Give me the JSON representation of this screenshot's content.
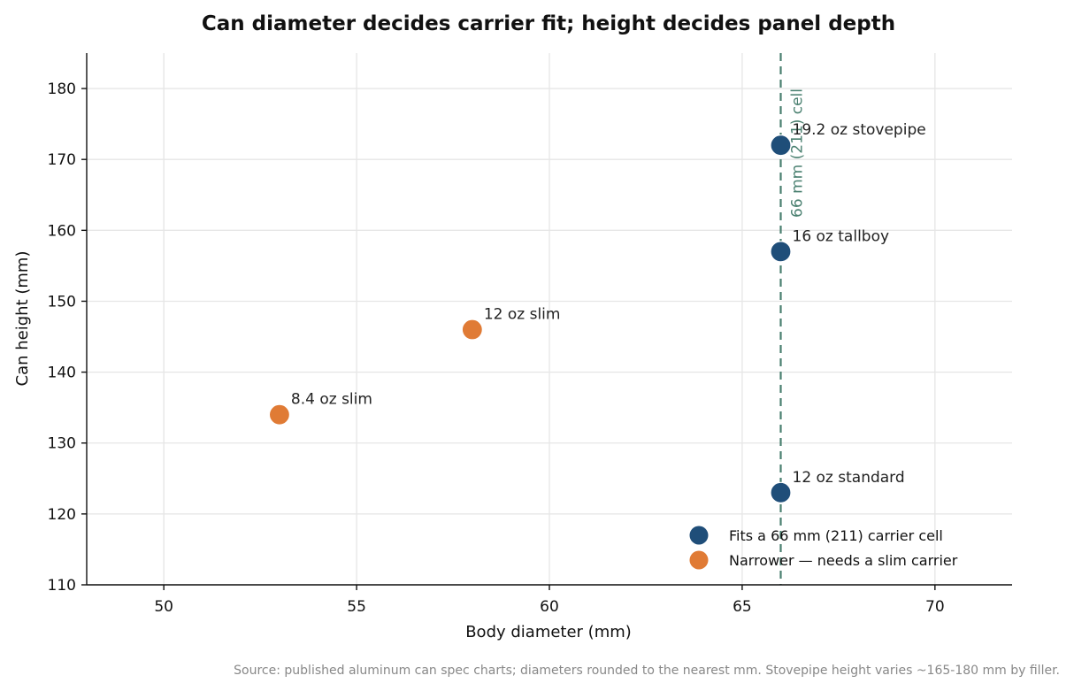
{
  "chart_data": {
    "type": "scatter",
    "title": "Can diameter decides carrier fit; height decides panel depth",
    "xlabel": "Body diameter (mm)",
    "ylabel": "Can height (mm)",
    "xlim": [
      48,
      72
    ],
    "ylim": [
      110,
      185
    ],
    "xticks": [
      50,
      55,
      60,
      65,
      70
    ],
    "yticks": [
      110,
      120,
      130,
      140,
      150,
      160,
      170,
      180
    ],
    "grid": true,
    "legend_position": "bottom-right",
    "series": [
      {
        "name": "Fits a 66 mm (211) carrier cell",
        "color": "#1f4e79",
        "points": [
          {
            "label": "12 oz standard",
            "x": 66,
            "y": 123
          },
          {
            "label": "16 oz tallboy",
            "x": 66,
            "y": 157
          },
          {
            "label": "19.2 oz stovepipe",
            "x": 66,
            "y": 172
          }
        ]
      },
      {
        "name": "Narrower — needs a slim carrier",
        "color": "#e07b35",
        "points": [
          {
            "label": "8.4 oz slim",
            "x": 53,
            "y": 134
          },
          {
            "label": "12 oz slim",
            "x": 58,
            "y": 146
          }
        ]
      }
    ],
    "reference_line": {
      "axis": "x",
      "value": 66,
      "label": "66 mm (211) cell",
      "color": "#4a8070"
    },
    "source_note": "Source: published aluminum can spec charts; diameters rounded to the nearest mm. Stovepipe height varies ~165-180 mm by filler."
  }
}
